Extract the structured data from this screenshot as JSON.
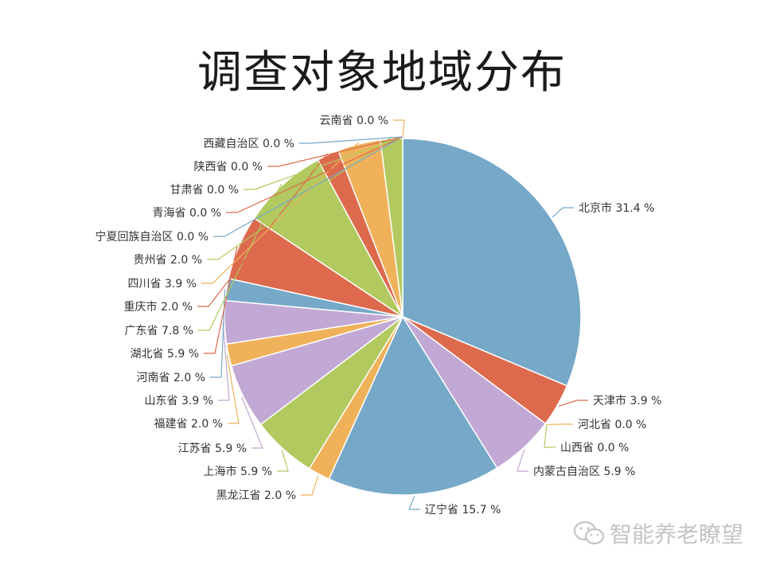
{
  "chart_data": {
    "type": "pie",
    "title": "调查对象地域分布",
    "unit_suffix": " %",
    "colors": {
      "blue": "#76a8c8",
      "red": "#dd6a4d",
      "purple": "#c2a8d4",
      "green": "#b1c95e",
      "orange": "#efb25a"
    },
    "slices": [
      {
        "label": "北京市",
        "value": 31.4,
        "color": "#76a8c8"
      },
      {
        "label": "天津市",
        "value": 3.9,
        "color": "#dd6a4d"
      },
      {
        "label": "河北省",
        "value": 0.0,
        "color": "#efb25a"
      },
      {
        "label": "山西省",
        "value": 0.0,
        "color": "#b1c95e"
      },
      {
        "label": "内蒙古自治区",
        "value": 5.9,
        "color": "#c2a8d4"
      },
      {
        "label": "辽宁省",
        "value": 15.7,
        "color": "#76a8c8"
      },
      {
        "label": "黑龙江省",
        "value": 2.0,
        "color": "#efb25a"
      },
      {
        "label": "上海市",
        "value": 5.9,
        "color": "#b1c95e"
      },
      {
        "label": "江苏省",
        "value": 5.9,
        "color": "#c2a8d4"
      },
      {
        "label": "福建省",
        "value": 2.0,
        "color": "#efb25a"
      },
      {
        "label": "山东省",
        "value": 3.9,
        "color": "#c2a8d4"
      },
      {
        "label": "河南省",
        "value": 2.0,
        "color": "#76a8c8"
      },
      {
        "label": "湖北省",
        "value": 5.9,
        "color": "#dd6a4d"
      },
      {
        "label": "广东省",
        "value": 7.8,
        "color": "#b1c95e"
      },
      {
        "label": "重庆市",
        "value": 2.0,
        "color": "#dd6a4d"
      },
      {
        "label": "四川省",
        "value": 3.9,
        "color": "#efb25a"
      },
      {
        "label": "贵州省",
        "value": 2.0,
        "color": "#b1c95e"
      },
      {
        "label": "宁夏回族自治区",
        "value": 0.0,
        "color": "#76a8c8"
      },
      {
        "label": "青海省",
        "value": 0.0,
        "color": "#dd6a4d"
      },
      {
        "label": "甘肃省",
        "value": 0.0,
        "color": "#b1c95e"
      },
      {
        "label": "陕西省",
        "value": 0.0,
        "color": "#dd6a4d"
      },
      {
        "label": "西藏自治区",
        "value": 0.0,
        "color": "#76a8c8"
      },
      {
        "label": "云南省",
        "value": 0.0,
        "color": "#efb25a"
      }
    ]
  },
  "watermark": {
    "text": "智能养老瞭望",
    "icon": "wechat-bubbles-icon"
  }
}
